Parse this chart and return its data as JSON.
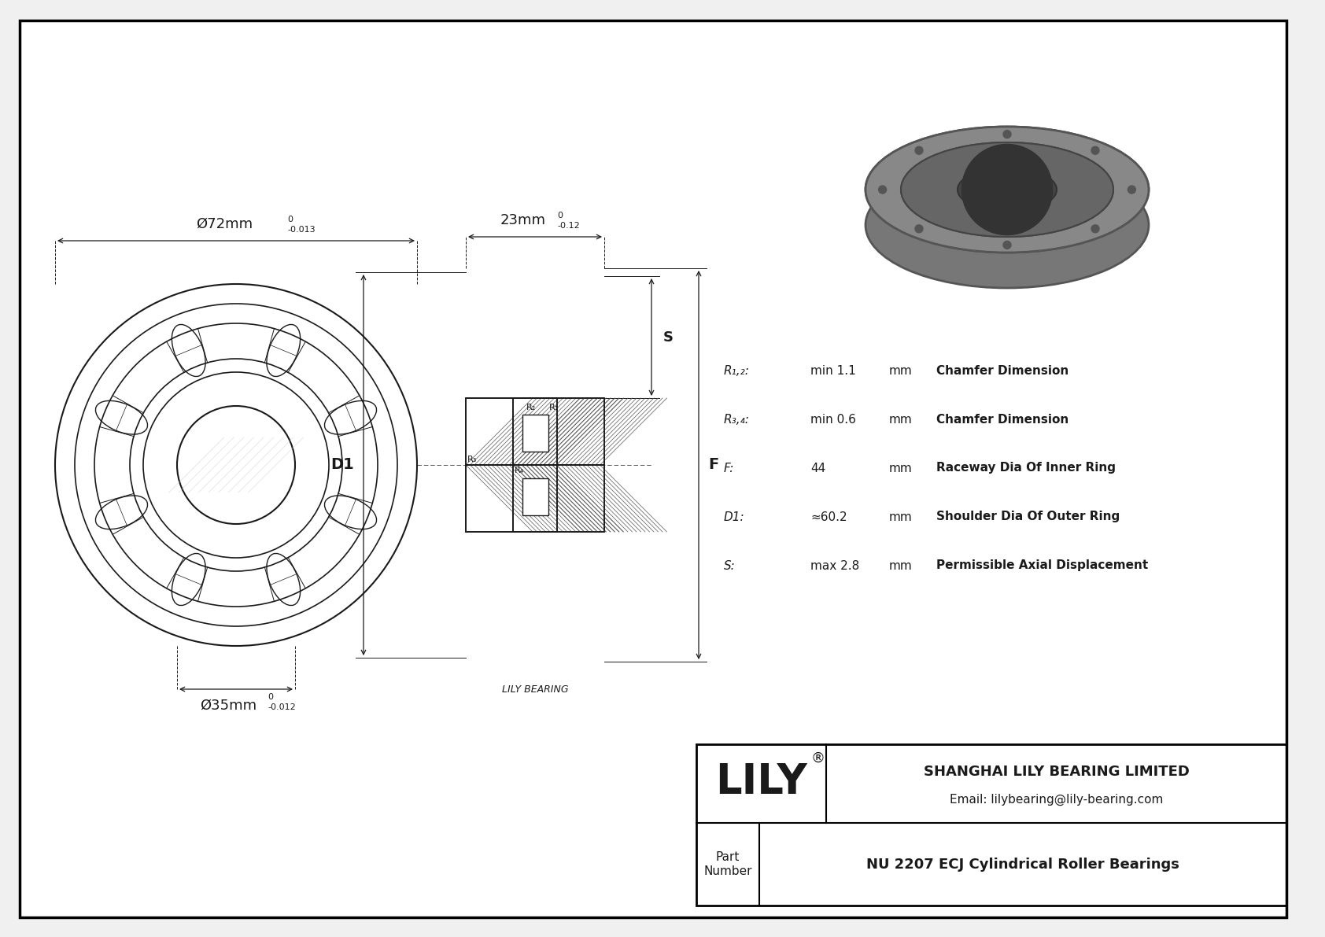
{
  "bg_color": "#f0f0f0",
  "drawing_bg": "#ffffff",
  "border_color": "#000000",
  "title": "NU 2207 ECJ Cylindrical Roller Bearings",
  "company": "SHANGHAI LILY BEARING LIMITED",
  "email": "Email: lilybearing@lily-bearing.com",
  "part_label": "Part\nNumber",
  "lily_label": "LILY",
  "watermark": "LILY BEARING",
  "dim_outer": "Ø72mm",
  "dim_outer_tol": "-0.013",
  "dim_outer_tol_upper": "0",
  "dim_inner": "Ø35mm",
  "dim_inner_tol": "-0.012",
  "dim_inner_tol_upper": "0",
  "dim_width": "23mm",
  "dim_width_tol": "-0.12",
  "dim_width_tol_upper": "0",
  "label_S": "S",
  "label_D1": "D1",
  "label_F": "F",
  "label_R1": "R₁",
  "label_R2": "R₂",
  "label_R3": "R₃",
  "label_R4": "R₄",
  "specs": [
    {
      "key": "R₁,₂:",
      "value": "min 1.1",
      "unit": "mm",
      "desc": "Chamfer Dimension"
    },
    {
      "key": "R₃,₄:",
      "value": "min 0.6",
      "unit": "mm",
      "desc": "Chamfer Dimension"
    },
    {
      "key": "F:",
      "value": "44",
      "unit": "mm",
      "desc": "Raceway Dia Of Inner Ring"
    },
    {
      "key": "D1:",
      "value": "≈60.2",
      "unit": "mm",
      "desc": "Shoulder Dia Of Outer Ring"
    },
    {
      "key": "S:",
      "value": "max 2.8",
      "unit": "mm",
      "desc": "Permissible Axial Displacement"
    }
  ]
}
